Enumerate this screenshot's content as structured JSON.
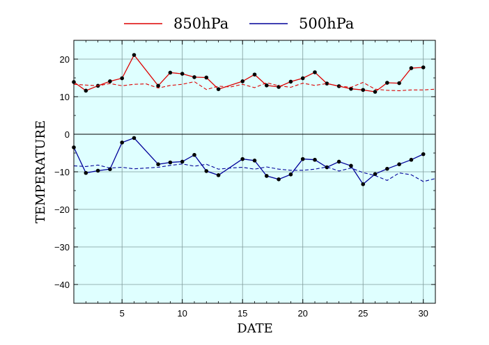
{
  "chart_data": {
    "type": "line",
    "title": "",
    "xlabel": "DATE",
    "ylabel": "TEMPERATURE",
    "xlim": [
      1,
      31
    ],
    "ylim": [
      -45,
      25
    ],
    "xticks": [
      5,
      10,
      15,
      20,
      25,
      30
    ],
    "yticks": [
      -40,
      -30,
      -20,
      -10,
      0,
      10,
      20
    ],
    "xtick_labels": [
      "5",
      "10",
      "15",
      "20",
      "25",
      "30"
    ],
    "ytick_labels": [
      "−40",
      "−30",
      "−20",
      "−10",
      "0",
      "10",
      "20"
    ],
    "grid": true,
    "background": "#dfffff",
    "legend_position": "top",
    "series": [
      {
        "name": "850hPa",
        "color": "#dd0000",
        "style": "solid",
        "markers": true,
        "x": [
          1,
          2,
          3,
          4,
          5,
          6,
          8,
          9,
          10,
          11,
          12,
          13,
          15,
          16,
          17,
          18,
          19,
          20,
          21,
          22,
          23,
          24,
          25,
          26,
          27,
          28,
          29,
          30
        ],
        "y": [
          13.9,
          11.6,
          12.9,
          14.1,
          14.9,
          21.1,
          12.9,
          16.4,
          16.1,
          15.2,
          15.1,
          12.0,
          14.1,
          15.9,
          13.0,
          12.6,
          14.0,
          14.9,
          16.5,
          13.5,
          12.8,
          12.1,
          11.8,
          11.3,
          13.7,
          13.6,
          17.6,
          17.8
        ]
      },
      {
        "name": "500hPa",
        "color": "#000099",
        "style": "solid",
        "markers": true,
        "x": [
          1,
          2,
          3,
          4,
          5,
          6,
          8,
          9,
          10,
          11,
          12,
          13,
          15,
          16,
          17,
          18,
          19,
          20,
          21,
          22,
          23,
          24,
          25,
          26,
          27,
          28,
          29,
          30
        ],
        "y": [
          -3.5,
          -10.3,
          -9.7,
          -9.3,
          -2.2,
          -1.0,
          -8.0,
          -7.5,
          -7.3,
          -5.5,
          -9.8,
          -10.9,
          -6.6,
          -7.0,
          -11.1,
          -12.0,
          -10.7,
          -6.6,
          -6.8,
          -8.8,
          -7.3,
          -8.4,
          -13.3,
          -10.6,
          -9.2,
          -8.0,
          -6.8,
          -5.3
        ]
      },
      {
        "name": "",
        "color": "#dd0000",
        "style": "dashed",
        "markers": false,
        "x": [
          1,
          2,
          3,
          4,
          5,
          6,
          7,
          8,
          9,
          10,
          11,
          12,
          13,
          14,
          15,
          16,
          17,
          18,
          19,
          20,
          21,
          22,
          23,
          24,
          25,
          26,
          27,
          28,
          29,
          30,
          31
        ],
        "y": [
          13.3,
          13.1,
          12.9,
          13.5,
          12.9,
          13.3,
          13.4,
          12.3,
          13.0,
          13.3,
          14.0,
          11.9,
          12.8,
          12.6,
          13.3,
          12.4,
          13.7,
          12.9,
          12.5,
          13.6,
          13.0,
          13.5,
          12.8,
          12.5,
          13.8,
          12.0,
          11.7,
          11.6,
          11.8,
          11.8,
          12.0
        ]
      },
      {
        "name": "",
        "color": "#000099",
        "style": "dashed",
        "markers": false,
        "x": [
          1,
          2,
          3,
          4,
          5,
          6,
          7,
          8,
          9,
          10,
          11,
          12,
          13,
          14,
          15,
          16,
          17,
          18,
          19,
          20,
          21,
          22,
          23,
          24,
          25,
          26,
          27,
          28,
          29,
          30,
          31
        ],
        "y": [
          -8.4,
          -8.6,
          -8.2,
          -9.0,
          -8.8,
          -9.2,
          -9.0,
          -8.8,
          -8.3,
          -7.9,
          -8.5,
          -8.0,
          -9.3,
          -9.0,
          -8.8,
          -9.3,
          -8.7,
          -9.3,
          -9.6,
          -9.6,
          -9.3,
          -8.7,
          -9.8,
          -9.0,
          -10.2,
          -11.0,
          -12.3,
          -10.3,
          -10.8,
          -12.6,
          -11.8
        ]
      }
    ]
  }
}
